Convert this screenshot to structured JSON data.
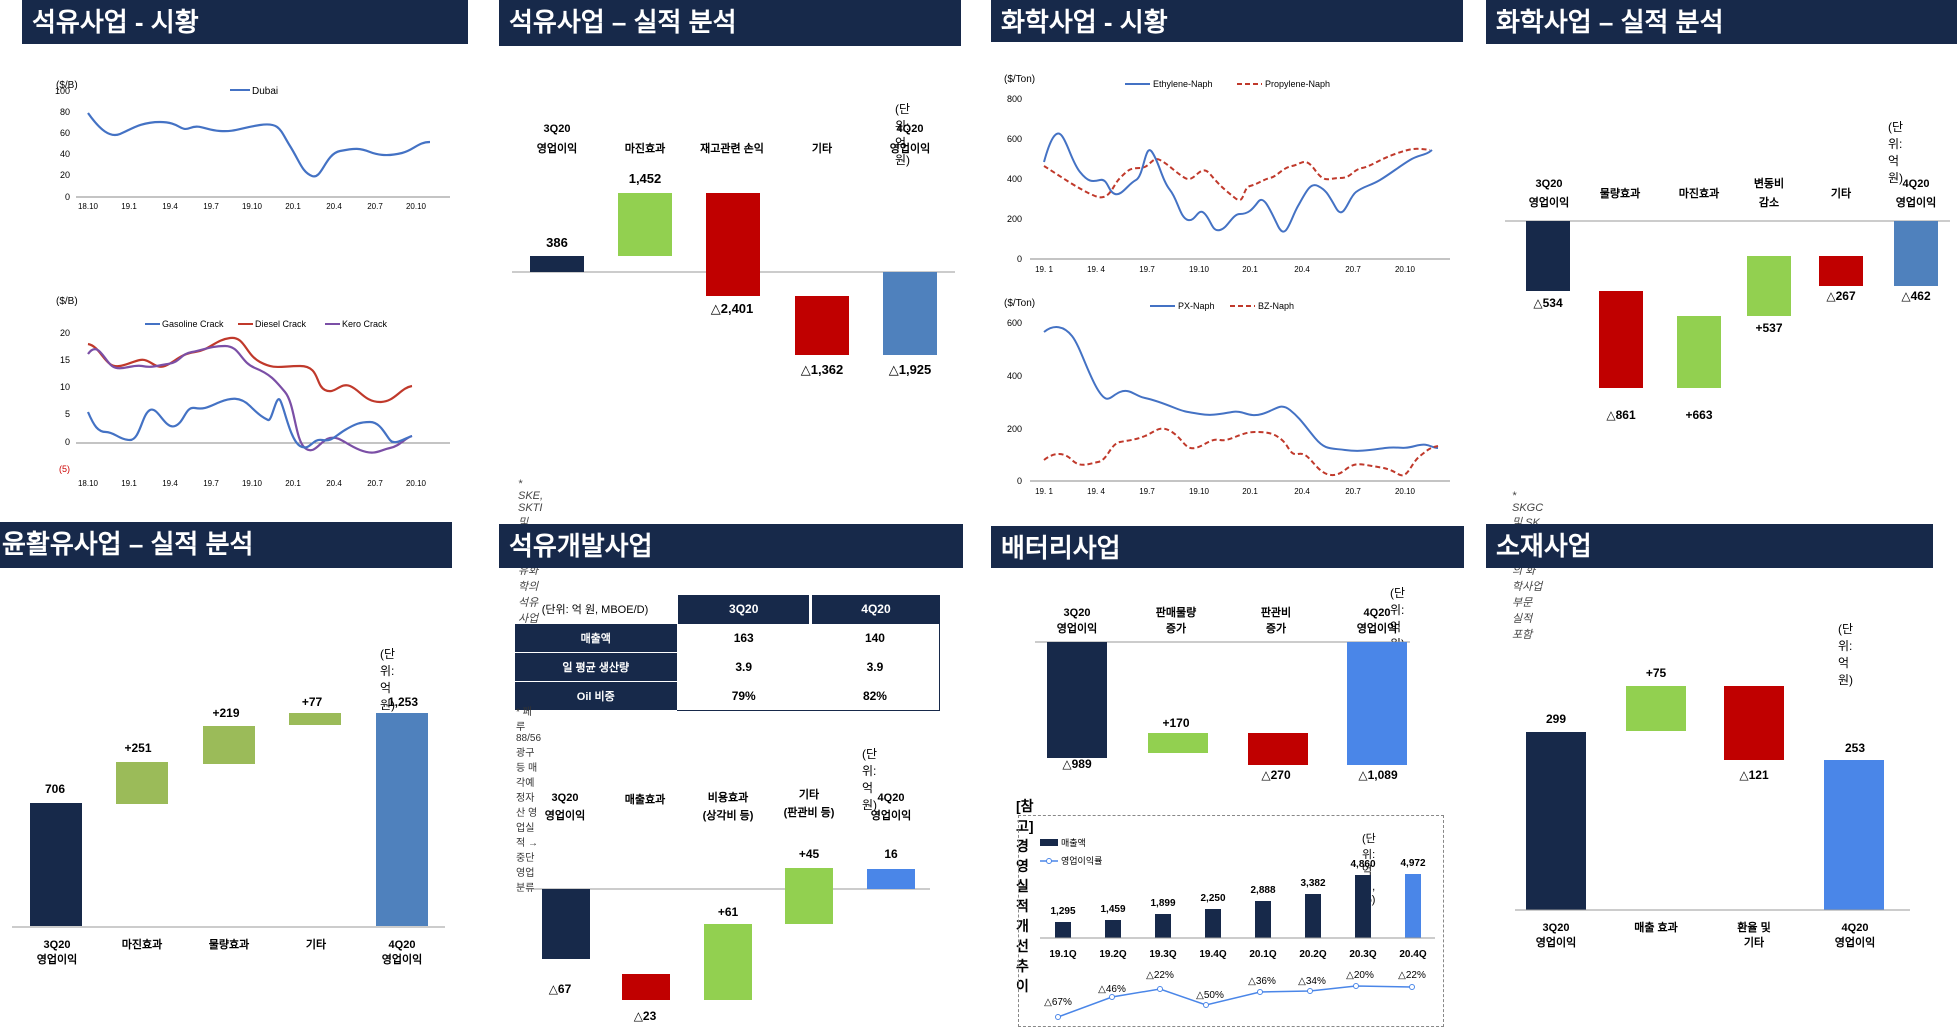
{
  "panels": {
    "oil_market": {
      "title": "석유사업 - 시황",
      "chart1": {
        "unit": "($/B)",
        "legend": [
          "Dubai"
        ],
        "yticks": [
          "100",
          "80",
          "60",
          "40",
          "20",
          "0"
        ],
        "xticks": [
          "18.10",
          "19.1",
          "19.4",
          "19.7",
          "19.10",
          "20.1",
          "20.4",
          "20.7",
          "20.10"
        ]
      },
      "chart2": {
        "unit": "($/B)",
        "legend": [
          "Gasoline Crack",
          "Diesel Crack",
          "Kero Crack"
        ],
        "yticks": [
          "20",
          "15",
          "10",
          "5",
          "0",
          "(5)"
        ],
        "xticks": [
          "18.10",
          "19.1",
          "19.4",
          "19.7",
          "19.10",
          "20.1",
          "20.4",
          "20.7",
          "20.10"
        ]
      }
    },
    "oil_perf": {
      "title": "석유사업 – 실적 분석",
      "unit": "(단위: 억 원)",
      "labels": [
        [
          "3Q20",
          "영업이익"
        ],
        [
          "마진효과"
        ],
        [
          "재고관련 손익"
        ],
        [
          "기타"
        ],
        [
          "4Q20",
          "영업이익"
        ]
      ],
      "values": [
        "386",
        "1,452",
        "△2,401",
        "△1,362",
        "△1,925"
      ],
      "note": "* SKE, SKTI 및 SK인천석유화학의 석유사업 부문 실적 포함"
    },
    "chem_market": {
      "title": "화학사업 - 시황",
      "chart1": {
        "unit": "($/Ton)",
        "legend": [
          "Ethylene-Naph",
          "Propylene-Naph"
        ],
        "yticks": [
          "800",
          "600",
          "400",
          "200",
          "0"
        ],
        "xticks": [
          "19. 1",
          "19. 4",
          "19.7",
          "19.10",
          "20.1",
          "20.4",
          "20.7",
          "20.10"
        ]
      },
      "chart2": {
        "unit": "($/Ton)",
        "legend": [
          "PX-Naph",
          "BZ-Naph"
        ],
        "yticks": [
          "600",
          "400",
          "200",
          "0"
        ],
        "xticks": [
          "19. 1",
          "19. 4",
          "19.7",
          "19.10",
          "20.1",
          "20.4",
          "20.7",
          "20.10"
        ]
      }
    },
    "chem_perf": {
      "title": "화학사업 – 실적 분석",
      "unit": "(단위: 억 원)",
      "labels": [
        [
          "3Q20",
          "영업이익"
        ],
        [
          "물량효과"
        ],
        [
          "마진효과"
        ],
        [
          "변동비",
          "감소"
        ],
        [
          "기타"
        ],
        [
          "4Q20",
          "영업이익"
        ]
      ],
      "values": [
        "△534",
        "△861",
        "+663",
        "+537",
        "△267",
        "△462"
      ],
      "note": "* SKGC 및 SK인천석유화학의 화학사업 부문 실적 포함"
    },
    "lube_perf": {
      "title": "윤활유사업 – 실적 분석",
      "unit": "(단위: 억 원)",
      "labels": [
        [
          "3Q20",
          "영업이익"
        ],
        [
          "마진효과"
        ],
        [
          "물량효과"
        ],
        [
          "기타"
        ],
        [
          "4Q20",
          "영업이익"
        ]
      ],
      "values": [
        "706",
        "+251",
        "+219",
        "+77",
        "1,253"
      ]
    },
    "ep": {
      "title": "석유개발사업",
      "table": {
        "unit": "(단위: 억 원, MBOE/D)",
        "cols": [
          "3Q20",
          "4Q20"
        ],
        "rows": [
          {
            "label": "매출액",
            "v1": "163",
            "v2": "140"
          },
          {
            "label": "일 평균 생산량",
            "v1": "3.9",
            "v2": "3.9"
          },
          {
            "label": "Oil 비중",
            "v1": "79%",
            "v2": "82%"
          }
        ],
        "note": "* 페루 88/56 광구 등 매각예정자산 영업실적 → 중단영업 분류"
      },
      "unit": "(단위: 억 원)",
      "labels": [
        [
          "3Q20",
          "영업이익"
        ],
        [
          "매출효과"
        ],
        [
          "비용효과",
          "(상각비 등)"
        ],
        [
          "기타",
          "(판관비 등)"
        ],
        [
          "4Q20",
          "영업이익"
        ]
      ],
      "values": [
        "△67",
        "△23",
        "+61",
        "+45",
        "16"
      ]
    },
    "battery": {
      "title": "배터리사업",
      "unit": "(단위: 억 원)",
      "labels": [
        [
          "3Q20",
          "영업이익"
        ],
        [
          "판매물량",
          "증가"
        ],
        [
          "판관비",
          "증가"
        ],
        [
          "4Q20",
          "영업이익"
        ]
      ],
      "values": [
        "△989",
        "+170",
        "△270",
        "△1,089"
      ],
      "ref": {
        "title": "[참고] 경영실적 개선 추이",
        "unit": "(단위: 억 원, %)",
        "legend": [
          "매출액",
          "영업이익률"
        ],
        "quarters": [
          "19.1Q",
          "19.2Q",
          "19.3Q",
          "19.4Q",
          "20.1Q",
          "20.2Q",
          "20.3Q",
          "20.4Q"
        ],
        "sales": [
          "1,295",
          "1,459",
          "1,899",
          "2,250",
          "2,888",
          "3,382",
          "4,860",
          "4,972"
        ],
        "margins": [
          "△67%",
          "△46%",
          "△22%",
          "△50%",
          "△36%",
          "△34%",
          "△20%",
          "△22%"
        ]
      }
    },
    "materials": {
      "title": "소재사업",
      "unit": "(단위: 억 원)",
      "labels": [
        [
          "3Q20",
          "영업이익"
        ],
        [
          "매출 효과"
        ],
        [
          "환율 및",
          "기타"
        ],
        [
          "4Q20",
          "영업이익"
        ]
      ],
      "values": [
        "299",
        "+75",
        "△121",
        "253"
      ]
    }
  },
  "chart_data": [
    {
      "type": "line",
      "title": "석유사업 - 시황 (Dubai)",
      "ylabel": "($/B)",
      "ylim": [
        0,
        100
      ],
      "x": [
        "18.10",
        "19.1",
        "19.4",
        "19.7",
        "19.10",
        "20.1",
        "20.4",
        "20.7",
        "20.10",
        "20.12"
      ],
      "series": [
        {
          "name": "Dubai",
          "values": [
            80,
            58,
            70,
            62,
            60,
            64,
            21,
            43,
            40,
            50
          ]
        }
      ]
    },
    {
      "type": "line",
      "title": "석유사업 - 시황 (Cracks)",
      "ylabel": "($/B)",
      "ylim": [
        -5,
        20
      ],
      "x": [
        "18.10",
        "19.1",
        "19.4",
        "19.7",
        "19.10",
        "20.1",
        "20.4",
        "20.7",
        "20.10",
        "20.12"
      ],
      "series": [
        {
          "name": "Gasoline Crack",
          "values": [
            6,
            0,
            7,
            7,
            9,
            6,
            -1,
            1,
            4,
            3
          ]
        },
        {
          "name": "Diesel Crack",
          "values": [
            18,
            14,
            13,
            16,
            18,
            12,
            11,
            5,
            4,
            6
          ]
        },
        {
          "name": "Kero Crack",
          "values": [
            16,
            12,
            13,
            15,
            16,
            10,
            -1,
            1,
            -1,
            2
          ]
        }
      ]
    },
    {
      "type": "bar",
      "title": "석유사업 – 실적 분석",
      "categories": [
        "3Q20 영업이익",
        "마진효과",
        "재고관련 손익",
        "기타",
        "4Q20 영업이익"
      ],
      "values": [
        386,
        1452,
        -2401,
        -1362,
        -1925
      ]
    },
    {
      "type": "line",
      "title": "화학사업 - 시황 (Ethylene/Propylene)",
      "ylabel": "($/Ton)",
      "ylim": [
        0,
        800
      ],
      "x": [
        "19. 1",
        "19. 4",
        "19.7",
        "19.10",
        "20.1",
        "20.4",
        "20.7",
        "20.10",
        "20.12"
      ],
      "series": [
        {
          "name": "Ethylene-Naph",
          "values": [
            460,
            400,
            300,
            220,
            270,
            200,
            430,
            440,
            540
          ]
        },
        {
          "name": "Propylene-Naph",
          "values": [
            460,
            300,
            480,
            330,
            300,
            440,
            400,
            490,
            540
          ]
        }
      ]
    },
    {
      "type": "line",
      "title": "화학사업 - 시황 (PX/BZ)",
      "ylabel": "($/Ton)",
      "ylim": [
        0,
        600
      ],
      "x": [
        "19. 1",
        "19. 4",
        "19.7",
        "19.10",
        "20.1",
        "20.4",
        "20.7",
        "20.10",
        "20.12"
      ],
      "series": [
        {
          "name": "PX-Naph",
          "values": [
            560,
            330,
            320,
            260,
            260,
            230,
            160,
            160,
            150
          ]
        },
        {
          "name": "BZ-Naph",
          "values": [
            70,
            50,
            160,
            120,
            180,
            120,
            40,
            30,
            180
          ]
        }
      ]
    },
    {
      "type": "bar",
      "title": "화학사업 – 실적 분석",
      "categories": [
        "3Q20 영업이익",
        "물량효과",
        "마진효과",
        "변동비 감소",
        "기타",
        "4Q20 영업이익"
      ],
      "values": [
        -534,
        -861,
        663,
        537,
        -267,
        -462
      ]
    },
    {
      "type": "bar",
      "title": "윤활유사업 – 실적 분석",
      "categories": [
        "3Q20 영업이익",
        "마진효과",
        "물량효과",
        "기타",
        "4Q20 영업이익"
      ],
      "values": [
        706,
        251,
        219,
        77,
        1253
      ]
    },
    {
      "type": "bar",
      "title": "석유개발사업",
      "categories": [
        "3Q20 영업이익",
        "매출효과",
        "비용효과 (상각비 등)",
        "기타 (판관비 등)",
        "4Q20 영업이익"
      ],
      "values": [
        -67,
        -23,
        61,
        45,
        16
      ]
    },
    {
      "type": "bar",
      "title": "배터리사업",
      "categories": [
        "3Q20 영업이익",
        "판매물량 증가",
        "판관비 증가",
        "4Q20 영업이익"
      ],
      "values": [
        -989,
        170,
        -270,
        -1089
      ]
    },
    {
      "type": "bar",
      "title": "[참고] 경영실적 개선 추이",
      "categories": [
        "19.1Q",
        "19.2Q",
        "19.3Q",
        "19.4Q",
        "20.1Q",
        "20.2Q",
        "20.3Q",
        "20.4Q"
      ],
      "series": [
        {
          "name": "매출액",
          "values": [
            1295,
            1459,
            1899,
            2250,
            2888,
            3382,
            4860,
            4972
          ]
        },
        {
          "name": "영업이익률",
          "values": [
            -67,
            -46,
            -22,
            -50,
            -36,
            -34,
            -20,
            -22
          ]
        }
      ]
    },
    {
      "type": "bar",
      "title": "소재사업",
      "categories": [
        "3Q20 영업이익",
        "매출 효과",
        "환율 및 기타",
        "4Q20 영업이익"
      ],
      "values": [
        299,
        75,
        -121,
        253
      ]
    }
  ]
}
